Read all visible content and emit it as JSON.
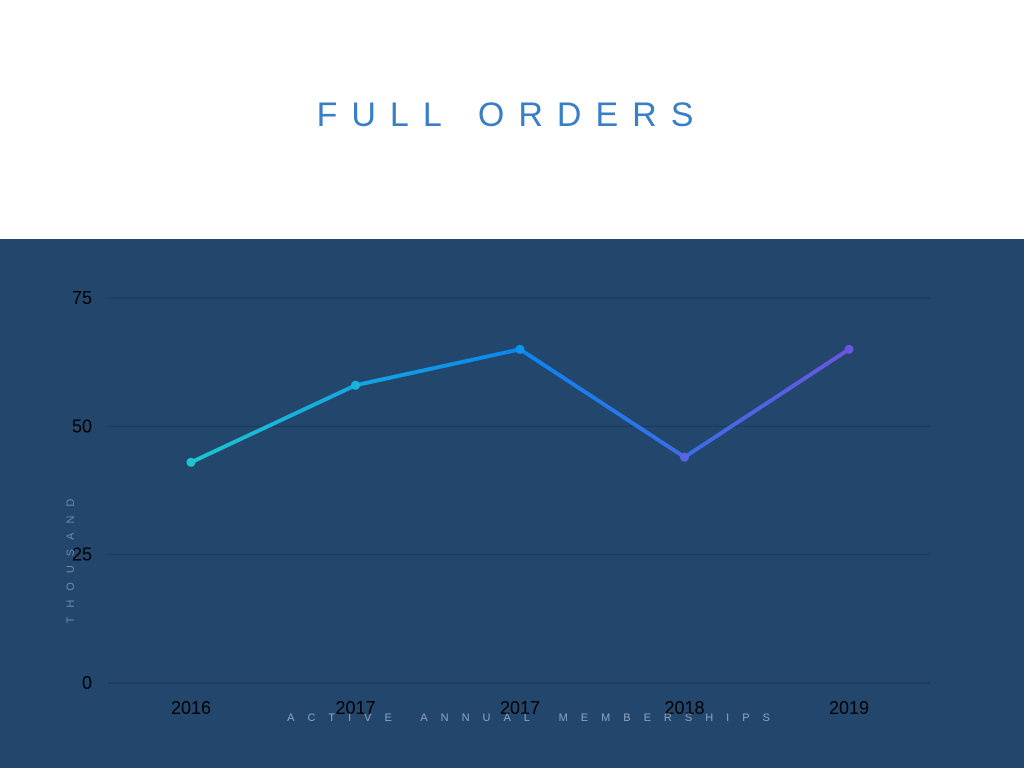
{
  "title": "FULL ORDERS",
  "colors": {
    "panel": "#22466c",
    "title": "#3a7ec6",
    "line_start": "#1ec5cf",
    "line_mid": "#0a86f0",
    "line_end": "#6b55e0",
    "grid": "#1b3a5c"
  },
  "chart_data": {
    "type": "line",
    "title": "FULL ORDERS",
    "xlabel": "ACTIVE ANNUAL MEMBERSHIPS",
    "ylabel": "THOUSAND",
    "categories": [
      "2016",
      "2017",
      "2017",
      "2018",
      "2019"
    ],
    "series": [
      {
        "values": [
          43,
          58,
          65,
          44,
          65
        ]
      }
    ],
    "ylim": [
      0,
      75
    ],
    "yticks": [
      "0",
      "25",
      "50",
      "75"
    ],
    "grid": true,
    "legend": "none"
  }
}
